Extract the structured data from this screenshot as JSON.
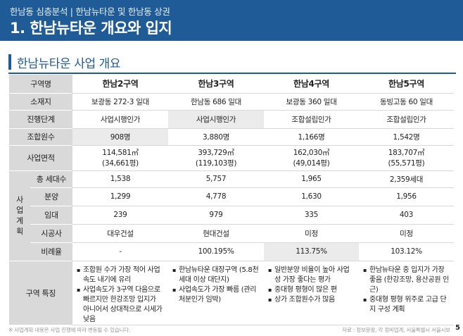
{
  "header": {
    "subtitle": "한남동 심층분석 | 한남뉴타운 및 한남동 상권",
    "title": "1. 한남뉴타운 개요와 입지"
  },
  "section": {
    "title": "한남뉴타운 사업 개요"
  },
  "table": {
    "corner": "구역명",
    "columns": [
      "한남2구역",
      "한남3구역",
      "한남4구역",
      "한남5구역"
    ],
    "rows": {
      "location": {
        "label": "소재지",
        "values": [
          "보광동 272-3 일대",
          "한남동 686 일대",
          "보광동 360 일대",
          "동빙고동 60 일대"
        ]
      },
      "stage": {
        "label": "진행단계",
        "values": [
          "사업시행인가",
          "사업시행인가",
          "조합설립인가",
          "조합설립인가"
        ]
      },
      "members": {
        "label": "조합원수",
        "values": [
          "908명",
          "3,880명",
          "1,166명",
          "1,542명"
        ]
      },
      "area": {
        "label": "사업면적",
        "m2": [
          "114,581㎡",
          "393,729㎡",
          "162,030㎡",
          "183,707㎡"
        ],
        "pyeong": [
          "(34,661평)",
          "(119,103평)",
          "(49,014평)",
          "(55,571평)"
        ]
      },
      "plan_side_label": [
        "사",
        "업",
        "계",
        "획"
      ],
      "total_units": {
        "label": "총 세대수",
        "values": [
          "1,538",
          "5,757",
          "1,965",
          "2,359세대"
        ]
      },
      "sale": {
        "label": "분양",
        "values": [
          "1,299",
          "4,778",
          "1,630",
          "1,956"
        ]
      },
      "rental": {
        "label": "임대",
        "values": [
          "239",
          "979",
          "335",
          "403"
        ]
      },
      "builder": {
        "label": "시공사",
        "values": [
          "대우건설",
          "현대건설",
          "미정",
          "미정"
        ]
      },
      "ratio": {
        "label": "비례율",
        "values": [
          "-",
          "100.195%",
          "113.75%",
          "103.12%"
        ]
      },
      "features": {
        "label": "구역 특징",
        "values": [
          [
            "조합원 수가 가장 적어 사업 속도 내기에 유리",
            "사업속도가 3구역 다음으로 빠르지만 한강조망 입지가 아니어서 상대적으로 시세가 낮음"
          ],
          [
            "한남뉴타운 대장구역 (5.8천세대 이상 대단지)",
            "사업속도가 가장 빠름 (관리처분인가 임박)"
          ],
          [
            "일반분양 비율이 높아 사업성 가장 좋다는 평가",
            "중대형 평형이 많은 편",
            "상가 조합원수가 많음"
          ],
          [
            "한남뉴타운 중 입지가 가장 좋음 (한강조망, 용산공원 인근)",
            "중대형 평형 위주로 고급 단지 구성 계획"
          ]
        ]
      }
    }
  },
  "footnote": "※ 사업계획 내용은 사업 진행에 따라 변동될 수 있습니다.",
  "source": "자료 : 정보몽땅, 각 정비업계, 서울특별시 서울시보",
  "page_number": "5",
  "colors": {
    "header_bg": "#1f5b96",
    "label_bg": "#d9d9d9",
    "highlight_bg": "#ebebeb"
  }
}
